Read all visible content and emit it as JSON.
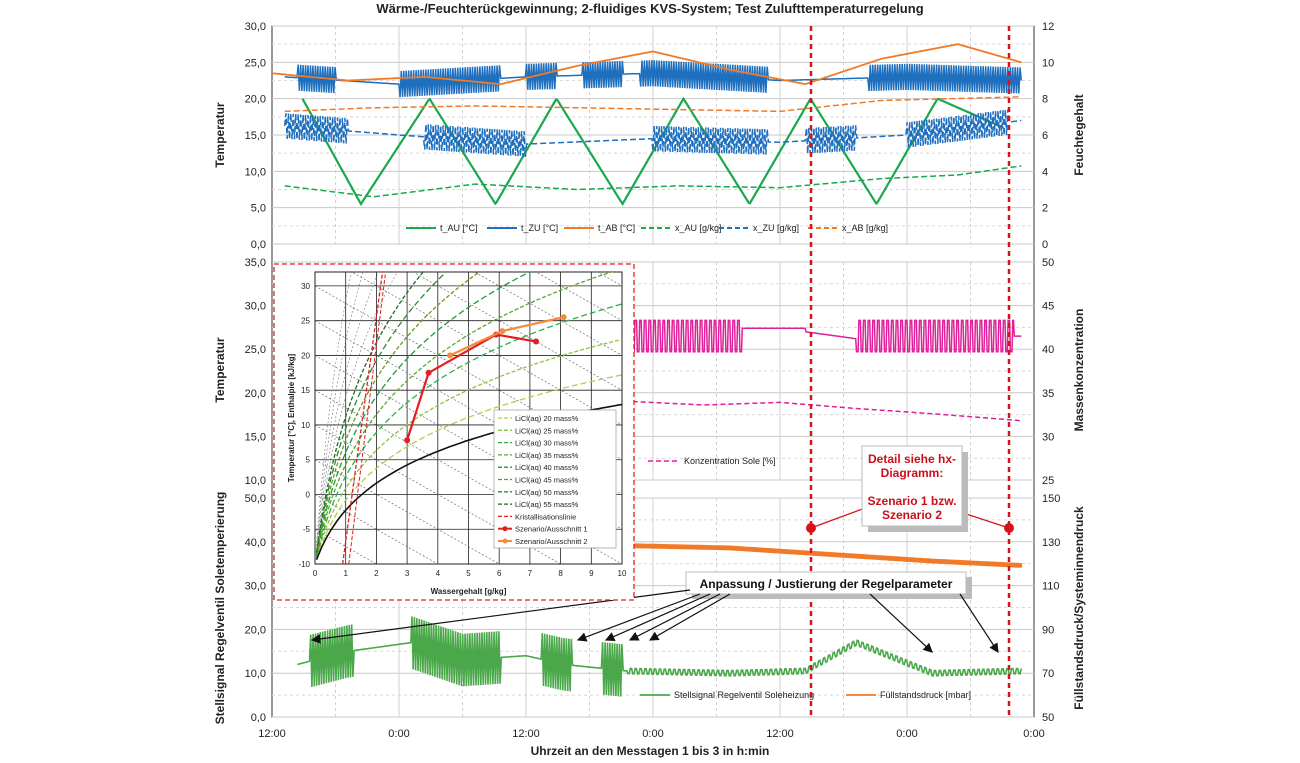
{
  "title": "Wärme-/Feuchterückgewinnung; 2-fluidiges KVS-System; Test Zulufttemperaturregelung",
  "xlabel": "Uhrzeit an den Messtagen 1 bis 3 in h:min",
  "x_ticks": [
    "12:00",
    "0:00",
    "12:00",
    "0:00",
    "12:00",
    "0:00"
  ],
  "annotations": {
    "detail_line1": "Detail siehe hx-",
    "detail_line2": "Diagramm:",
    "detail_line3": "Szenario 1 bzw.",
    "detail_line4": "Szenario 2",
    "anpassung": "Anpassung / Justierung der Regelparameter"
  },
  "colors": {
    "green": "#1aa84e",
    "blue": "#1f6fbf",
    "orange": "#f07a28",
    "magenta": "#e0209a",
    "stell": "#4aa84a",
    "red": "#d8121b"
  },
  "chart_data": [
    {
      "type": "line",
      "panel": "top",
      "ylabel": "Temperatur",
      "ylabel2": "Feuchtegehalt",
      "ylim": [
        0,
        30
      ],
      "ylim2": [
        0,
        12
      ],
      "yticks": [
        "0,0",
        "5,0",
        "10,0",
        "15,0",
        "20,0",
        "25,0",
        "30,0"
      ],
      "yticks2": [
        "0",
        "2",
        "4",
        "6",
        "8",
        "10",
        "12"
      ],
      "legend": [
        "t_AU [°C]",
        "t_ZU [°C]",
        "t_AB [°C]",
        "x_AU [g/kg]",
        "x_ZU [g/kg]",
        "x_AB [g/kg]"
      ],
      "series": [
        {
          "name": "t_AU [°C]",
          "axis": "left",
          "x": [
            0.12,
            0.35,
            0.62,
            0.88,
            1.12,
            1.38,
            1.62,
            1.88,
            2.12,
            2.38,
            2.62,
            2.88
          ],
          "values": [
            20,
            5.5,
            20,
            5.5,
            20,
            5.5,
            20,
            5.5,
            20,
            5.5,
            20,
            16
          ]
        },
        {
          "name": "t_ZU [°C]",
          "axis": "left",
          "x": [
            0.05,
            0.5,
            1.0,
            1.5,
            2.0,
            2.5,
            2.95
          ],
          "values": [
            23,
            22,
            23,
            23.5,
            22.5,
            23,
            22.5
          ]
        },
        {
          "name": "t_AB [°C]",
          "axis": "left",
          "x": [
            0.0,
            0.3,
            0.6,
            0.9,
            1.2,
            1.5,
            1.8,
            2.1,
            2.4,
            2.7,
            2.95
          ],
          "values": [
            23.5,
            22.5,
            23,
            22.0,
            24.5,
            26.5,
            24,
            22,
            25.5,
            27.5,
            25
          ]
        },
        {
          "name": "x_AU [g/kg]",
          "axis": "right",
          "x": [
            0.05,
            0.4,
            0.8,
            1.2,
            1.6,
            2.0,
            2.4,
            2.7,
            2.95
          ],
          "values": [
            3.2,
            2.6,
            3.3,
            3.0,
            3.2,
            3.1,
            3.6,
            3.8,
            4.3
          ]
        },
        {
          "name": "x_ZU [g/kg]",
          "axis": "right",
          "x": [
            0.05,
            0.5,
            1.0,
            1.5,
            2.0,
            2.5,
            2.95
          ],
          "values": [
            6.5,
            6.0,
            5.5,
            5.8,
            5.6,
            6.0,
            6.8
          ]
        },
        {
          "name": "x_AB [g/kg]",
          "axis": "right",
          "x": [
            0.05,
            0.4,
            0.8,
            1.2,
            1.6,
            2.0,
            2.4,
            2.95
          ],
          "values": [
            7.3,
            7.5,
            7.6,
            7.5,
            7.4,
            7.3,
            7.9,
            8.1
          ]
        }
      ]
    },
    {
      "type": "line",
      "panel": "middle",
      "ylabel": "Temperatur",
      "ylabel2": "Massenkonzentration",
      "ylim": [
        10,
        35
      ],
      "ylim2": [
        25,
        50
      ],
      "yticks": [
        "10,0",
        "15,0",
        "20,0",
        "25,0",
        "30,0",
        "35,0"
      ],
      "yticks2": [
        "25",
        "30",
        "35",
        "40",
        "45",
        "50"
      ],
      "legend": [
        "Konzentration Sole [%]"
      ],
      "series": [
        {
          "name": "Konzentration Sole [%]",
          "axis": "right",
          "x": [
            1.42,
            1.7,
            2.0,
            2.3,
            2.6,
            2.95
          ],
          "values": [
            34.0,
            33.6,
            33.9,
            33.2,
            32.6,
            31.8
          ]
        }
      ]
    },
    {
      "type": "line",
      "panel": "bottom",
      "ylabel": "Stellsignal Regelventil Soletemperierung",
      "ylabel2": "Füllstandsdruck/Systeminnendruck",
      "ylim": [
        0,
        50
      ],
      "ylim2": [
        50,
        150
      ],
      "yticks": [
        "0,0",
        "10,0",
        "20,0",
        "30,0",
        "40,0",
        "50,0"
      ],
      "yticks2": [
        "50",
        "70",
        "90",
        "110",
        "130",
        "150"
      ],
      "legend": [
        "Stellsignal Regelventil Soleheizung",
        "Füllstandsdruck [mbar]"
      ],
      "series": [
        {
          "name": "Stellsignal Regelventil Soleheizung",
          "axis": "left",
          "x": [
            0.1,
            0.3,
            0.55,
            0.75,
            1.0,
            1.15,
            1.4,
            1.8,
            2.1,
            2.3,
            2.6,
            2.95
          ],
          "values": [
            12,
            15,
            17,
            13,
            14,
            12,
            10.5,
            10,
            10.5,
            17,
            10,
            10.5
          ]
        },
        {
          "name": "Füllstandsdruck [mbar]",
          "axis": "right",
          "x": [
            1.42,
            1.8,
            2.2,
            2.6,
            2.95
          ],
          "values": [
            128,
            127,
            124,
            121,
            119
          ]
        }
      ]
    },
    {
      "type": "line",
      "panel": "inset-hx-diagram",
      "xlabel": "Wassergehalt  [g/kg]",
      "ylabel": "Temperatur [°C], Enthalpie [kJ/kg]",
      "xlim": [
        0,
        10
      ],
      "ylim": [
        -10,
        32
      ],
      "xticks": [
        "0",
        "1",
        "2",
        "3",
        "4",
        "5",
        "6",
        "7",
        "8",
        "9",
        "10"
      ],
      "yticks": [
        "-10",
        "-5",
        "0",
        "5",
        "10",
        "15",
        "20",
        "25",
        "30"
      ],
      "legend": [
        "LiCl(aq) 20 mass%",
        "LiCl(aq) 25 mass%",
        "LiCl(aq) 30 mass%",
        "LiCl(aq) 35 mass%",
        "LiCl(aq) 40 mass%",
        "LiCl(aq) 45 mass%",
        "LiCl(aq) 50 mass%",
        "LiCl(aq) 55 mass%",
        "Kristallisationslinie",
        "Szenario/Ausschnitt 1",
        "Szenario/Ausschnitt 2"
      ],
      "series": [
        {
          "name": "Szenario/Ausschnitt 1",
          "x": [
            3.0,
            3.7,
            5.9,
            7.2
          ],
          "values": [
            7.8,
            17.5,
            23.0,
            22.0
          ]
        },
        {
          "name": "Szenario/Ausschnitt 2",
          "x": [
            4.4,
            6.1,
            8.1
          ],
          "values": [
            20.0,
            23.5,
            25.5
          ]
        }
      ]
    }
  ]
}
